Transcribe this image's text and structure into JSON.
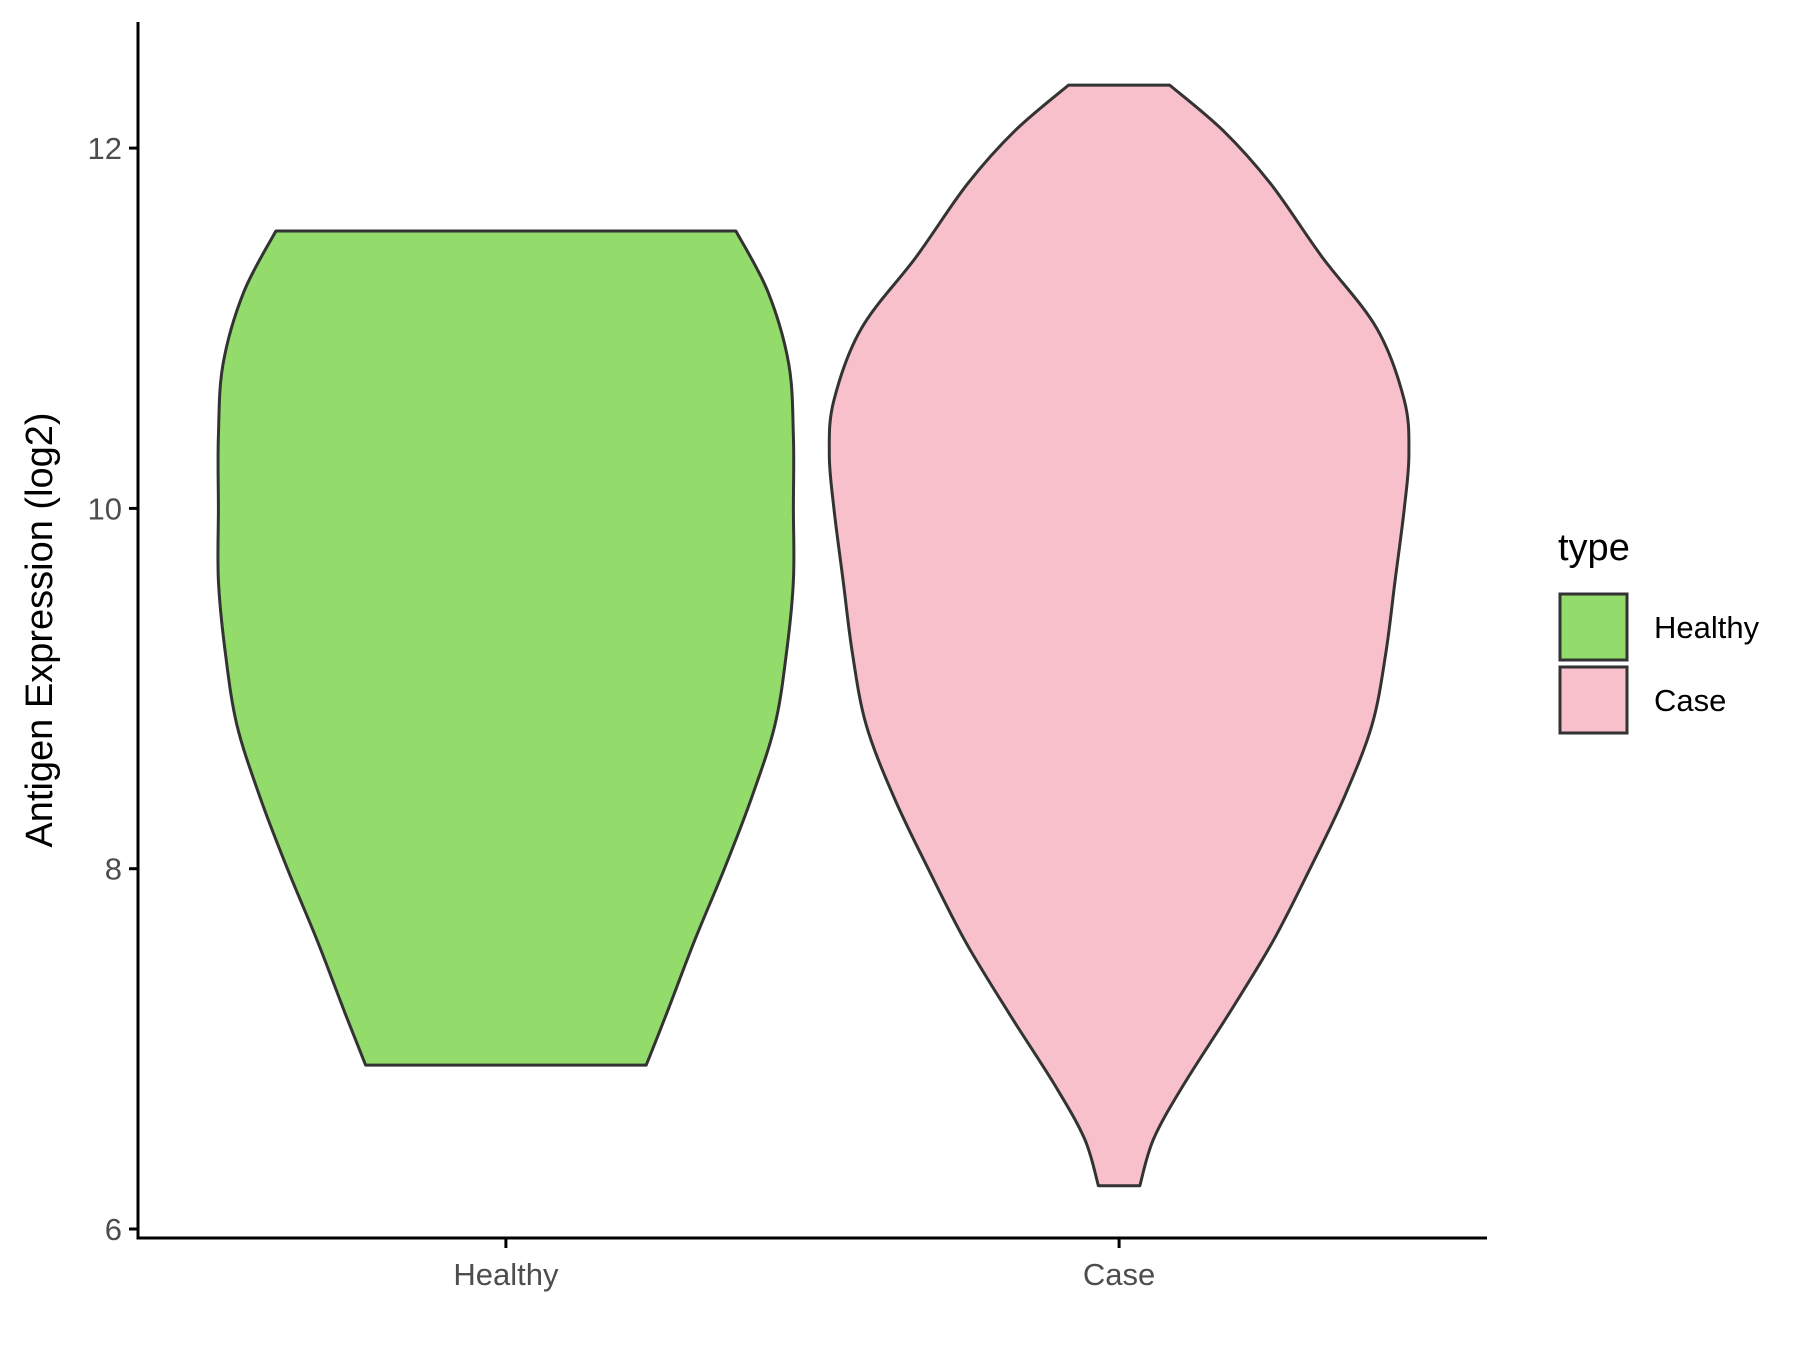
{
  "chart_data": {
    "type": "violin",
    "title": "",
    "xlabel": "",
    "ylabel": "Antigen Expression (log2)",
    "ylim": [
      5.95,
      12.7
    ],
    "yticks": [
      6,
      8,
      10,
      12
    ],
    "categories": [
      "Healthy",
      "Case"
    ],
    "series": [
      {
        "name": "Healthy",
        "color": "#93DC6B",
        "min": 6.91,
        "max": 11.54,
        "profile": [
          [
            6.91,
            0.61
          ],
          [
            7.2,
            0.7
          ],
          [
            7.6,
            0.82
          ],
          [
            8.0,
            0.95
          ],
          [
            8.4,
            1.07
          ],
          [
            8.8,
            1.17
          ],
          [
            9.2,
            1.22
          ],
          [
            9.6,
            1.25
          ],
          [
            10.0,
            1.25
          ],
          [
            10.4,
            1.25
          ],
          [
            10.8,
            1.23
          ],
          [
            11.2,
            1.14
          ],
          [
            11.54,
            1.0
          ]
        ]
      },
      {
        "name": "Case",
        "color": "#F8C0CB",
        "min": 6.24,
        "max": 12.35,
        "profile": [
          [
            6.24,
            0.09
          ],
          [
            6.5,
            0.15
          ],
          [
            6.8,
            0.28
          ],
          [
            7.2,
            0.48
          ],
          [
            7.6,
            0.67
          ],
          [
            8.0,
            0.83
          ],
          [
            8.4,
            0.98
          ],
          [
            8.8,
            1.1
          ],
          [
            9.2,
            1.16
          ],
          [
            9.6,
            1.2
          ],
          [
            10.0,
            1.24
          ],
          [
            10.3,
            1.26
          ],
          [
            10.6,
            1.24
          ],
          [
            11.0,
            1.12
          ],
          [
            11.4,
            0.88
          ],
          [
            11.8,
            0.66
          ],
          [
            12.1,
            0.45
          ],
          [
            12.35,
            0.22
          ]
        ]
      }
    ],
    "legend": {
      "title": "type",
      "position": "right",
      "entries": [
        {
          "label": "Healthy",
          "color": "#93DC6B"
        },
        {
          "label": "Case",
          "color": "#F8C0CB"
        }
      ]
    },
    "grid": false
  }
}
